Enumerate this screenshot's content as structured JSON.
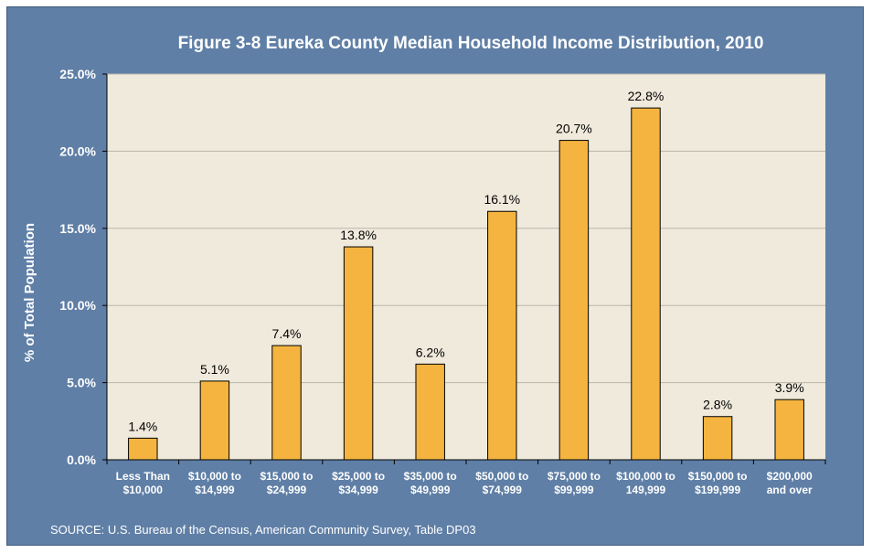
{
  "chart_data": {
    "type": "bar",
    "title": "Figure 3-8 Eureka County Median Household Income Distribution, 2010",
    "ylabel": "% of Total Population",
    "xlabel": "",
    "ylim": [
      0,
      25
    ],
    "y_ticks": [
      "0.0%",
      "5.0%",
      "10.0%",
      "15.0%",
      "20.0%",
      "25.0%"
    ],
    "categories": [
      [
        "Less Than",
        "$10,000"
      ],
      [
        "$10,000 to",
        "$14,999"
      ],
      [
        "$15,000 to",
        "$24,999"
      ],
      [
        "$25,000 to",
        "$34,999"
      ],
      [
        "$35,000 to",
        "$49,999"
      ],
      [
        "$50,000 to",
        "$74,999"
      ],
      [
        "$75,000 to",
        "$99,999"
      ],
      [
        "$100,000 to",
        "149,999"
      ],
      [
        "$150,000 to",
        "$199,999"
      ],
      [
        "$200,000",
        "and over"
      ]
    ],
    "values": [
      1.4,
      5.1,
      7.4,
      13.8,
      6.2,
      16.1,
      20.7,
      22.8,
      2.8,
      3.9
    ],
    "data_labels": [
      "1.4%",
      "5.1%",
      "7.4%",
      "13.8%",
      "6.2%",
      "16.1%",
      "20.7%",
      "22.8%",
      "2.8%",
      "3.9%"
    ],
    "grid": true,
    "legend": "none",
    "colors": {
      "frame": "#5f7fa6",
      "plot_area": "#efeadc",
      "bar_fill": "#f4b43f",
      "bar_stroke": "#000000",
      "gridline": "#b9b6aa"
    }
  },
  "source": "SOURCE: U.S.  Bureau of the Census, American Community Survey, Table DP03"
}
